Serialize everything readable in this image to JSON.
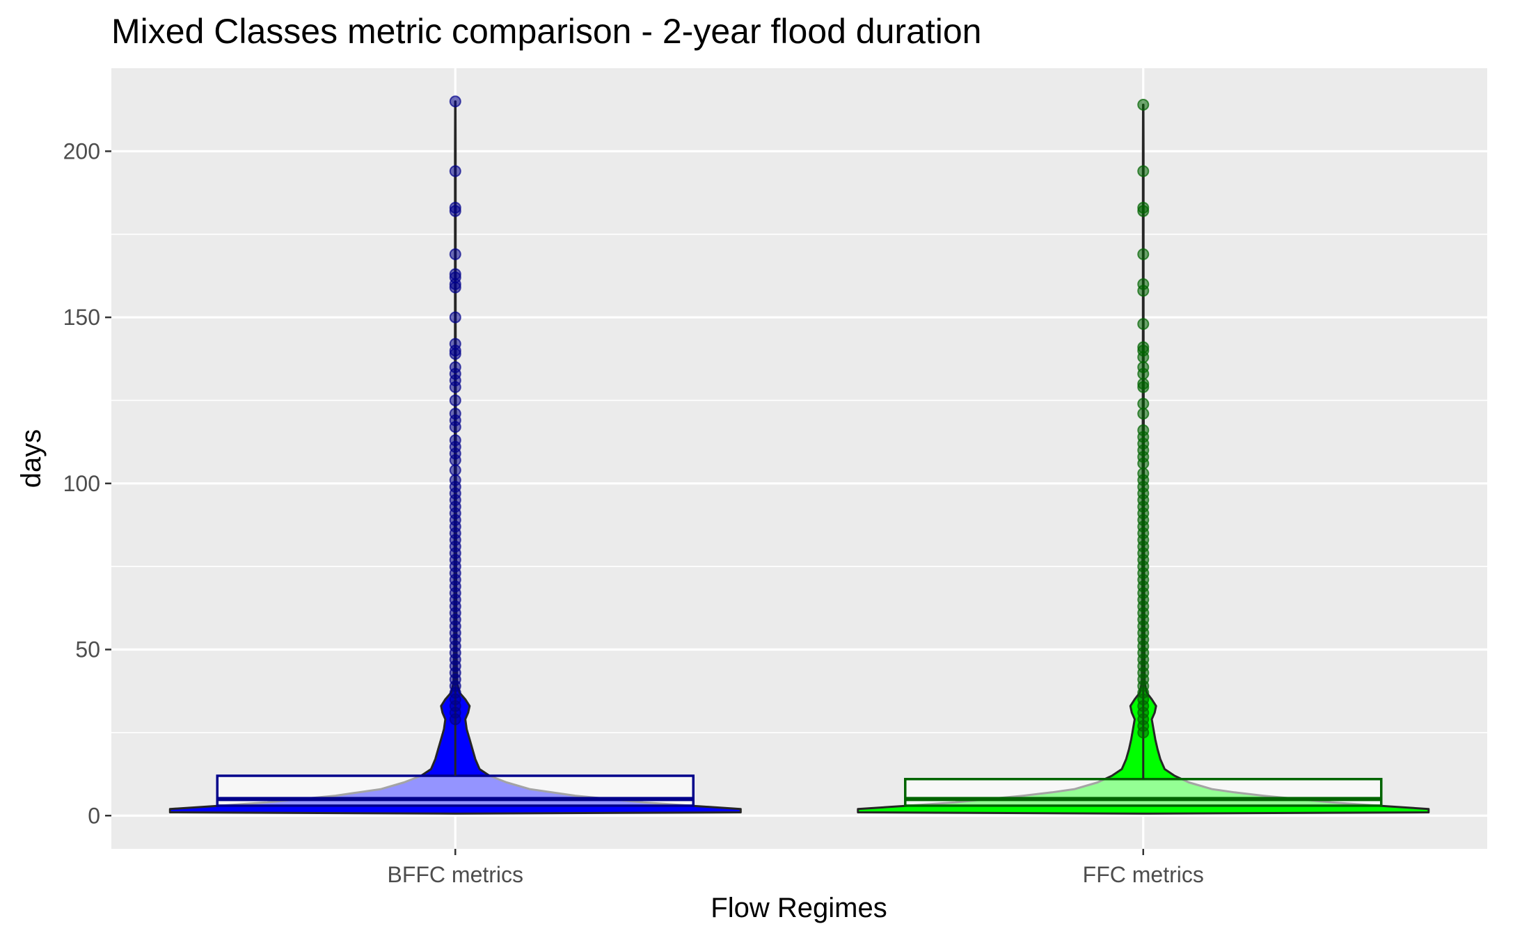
{
  "chart_data": {
    "type": "violin",
    "title": "Mixed Classes metric comparison - 2-year flood duration",
    "xlabel": "Flow Regimes",
    "ylabel": "days",
    "categories": [
      "BFFC metrics",
      "FFC metrics"
    ],
    "ylim": [
      -10,
      225
    ],
    "yticks": [
      0,
      50,
      100,
      150,
      200
    ],
    "grid": true,
    "legend": "none",
    "series": [
      {
        "category": "BFFC metrics",
        "fill_color": "#0000ff",
        "point_color": "#00008b",
        "box": {
          "q1": 3,
          "median": 5,
          "q3": 12,
          "whisker_low": 0,
          "whisker_high": 215
        },
        "density": [
          [
            1,
            1.0
          ],
          [
            2,
            1.0
          ],
          [
            3,
            0.82
          ],
          [
            4,
            0.66
          ],
          [
            5,
            0.54
          ],
          [
            6,
            0.42
          ],
          [
            7,
            0.34
          ],
          [
            8,
            0.26
          ],
          [
            10,
            0.18
          ],
          [
            12,
            0.12
          ],
          [
            14,
            0.085
          ],
          [
            17,
            0.07
          ],
          [
            20,
            0.06
          ],
          [
            23,
            0.05
          ],
          [
            26,
            0.04
          ],
          [
            29,
            0.035
          ],
          [
            31,
            0.045
          ],
          [
            33,
            0.05
          ],
          [
            35,
            0.035
          ],
          [
            37,
            0.015
          ],
          [
            40,
            0.006
          ],
          [
            50,
            0.004
          ],
          [
            70,
            0.003
          ],
          [
            100,
            0.002
          ],
          [
            150,
            0.001
          ],
          [
            200,
            0.001
          ],
          [
            215,
            0.0005
          ]
        ],
        "points": [
          215,
          194,
          183,
          182,
          169,
          163,
          162,
          160,
          159,
          150,
          142,
          140,
          139,
          135,
          133,
          131,
          129,
          125,
          121,
          119,
          117,
          113,
          111,
          109,
          107,
          104,
          101,
          99,
          97,
          95,
          93,
          91,
          89,
          87,
          85,
          83,
          81,
          79,
          77,
          75,
          73,
          71,
          69,
          67,
          65,
          63,
          61,
          59,
          57,
          55,
          53,
          51,
          49,
          47,
          45,
          43,
          41,
          39,
          37,
          35,
          33,
          31,
          29
        ]
      },
      {
        "category": "FFC metrics",
        "fill_color": "#00ff00",
        "point_color": "#006400",
        "box": {
          "q1": 3,
          "median": 5,
          "q3": 11,
          "whisker_low": 0,
          "whisker_high": 214
        },
        "density": [
          [
            1,
            1.0
          ],
          [
            2,
            1.0
          ],
          [
            3,
            0.82
          ],
          [
            4,
            0.66
          ],
          [
            5,
            0.54
          ],
          [
            6,
            0.42
          ],
          [
            7,
            0.32
          ],
          [
            8,
            0.24
          ],
          [
            10,
            0.16
          ],
          [
            12,
            0.11
          ],
          [
            14,
            0.075
          ],
          [
            17,
            0.06
          ],
          [
            20,
            0.05
          ],
          [
            23,
            0.042
          ],
          [
            26,
            0.036
          ],
          [
            29,
            0.03
          ],
          [
            31,
            0.04
          ],
          [
            33,
            0.045
          ],
          [
            35,
            0.03
          ],
          [
            37,
            0.012
          ],
          [
            40,
            0.005
          ],
          [
            50,
            0.004
          ],
          [
            70,
            0.003
          ],
          [
            100,
            0.002
          ],
          [
            150,
            0.001
          ],
          [
            200,
            0.001
          ],
          [
            214,
            0.0005
          ]
        ],
        "points": [
          214,
          194,
          183,
          182,
          169,
          160,
          158,
          148,
          141,
          140,
          138,
          135,
          133,
          130,
          129,
          124,
          121,
          116,
          114,
          112,
          110,
          108,
          106,
          103,
          101,
          99,
          97,
          95,
          93,
          91,
          89,
          87,
          85,
          83,
          81,
          79,
          77,
          75,
          73,
          71,
          69,
          67,
          65,
          63,
          61,
          59,
          57,
          55,
          53,
          51,
          49,
          47,
          45,
          43,
          41,
          39,
          37,
          35,
          33,
          31,
          29,
          27,
          25
        ]
      }
    ]
  }
}
